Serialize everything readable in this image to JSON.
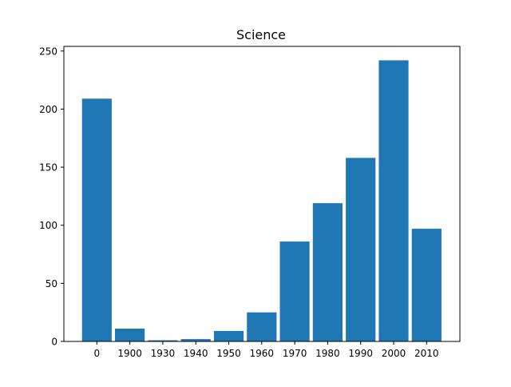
{
  "chart_data": {
    "type": "bar",
    "title": "Science",
    "xlabel": "",
    "ylabel": "",
    "categories": [
      "0",
      "1900",
      "1930",
      "1940",
      "1950",
      "1960",
      "1970",
      "1980",
      "1990",
      "2000",
      "2010"
    ],
    "values": [
      209,
      11,
      1,
      2,
      9,
      25,
      86,
      119,
      158,
      242,
      97
    ],
    "ylim": [
      0,
      254
    ],
    "yticks": [
      0,
      50,
      100,
      150,
      200,
      250
    ],
    "grid": false,
    "legend": "none",
    "bar_color": "#1f77b4"
  }
}
